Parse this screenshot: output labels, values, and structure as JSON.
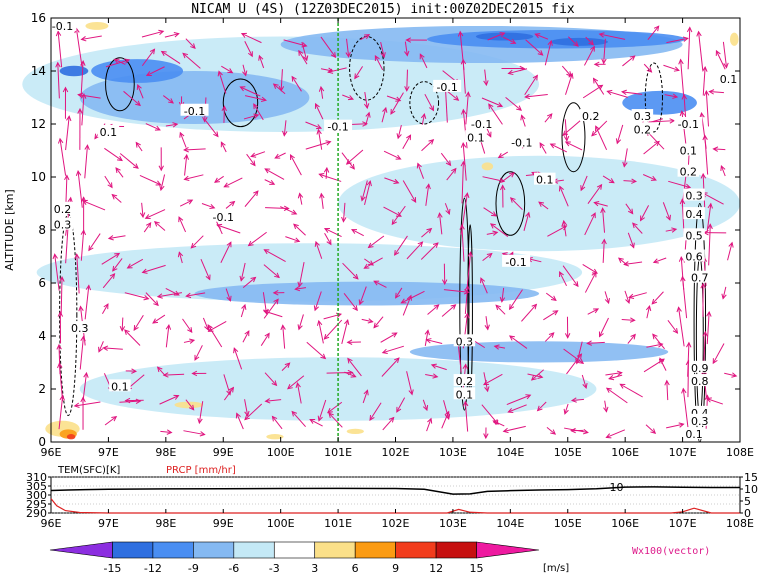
{
  "title": "NICAM U (4S) (12Z03DEC2015) init:00Z02DEC2015 fix",
  "chart_data": [
    {
      "type": "heatmap",
      "panel": "main",
      "title": "NICAM U (4S) (12Z03DEC2015) init:00Z02DEC2015 fix",
      "ylabel": "ALTITUDE [km]",
      "xlim": [
        96,
        108
      ],
      "ylim": [
        0,
        16
      ],
      "x_ticks": [
        "96E",
        "97E",
        "98E",
        "99E",
        "100E",
        "101E",
        "102E",
        "103E",
        "104E",
        "105E",
        "106E",
        "107E",
        "108E"
      ],
      "y_ticks": [
        "0",
        "2",
        "4",
        "6",
        "8",
        "10",
        "12",
        "14",
        "16"
      ],
      "reference_line_x": 101,
      "contour_labels": [
        {
          "text": "0.1",
          "x": 97.0,
          "y": 11.7
        },
        {
          "text": "-0.1",
          "x": 98.5,
          "y": 12.5
        },
        {
          "text": "-0.1",
          "x": 101.0,
          "y": 11.9
        },
        {
          "text": "-0.1",
          "x": 102.9,
          "y": 13.4
        },
        {
          "text": "-0.1",
          "x": 103.5,
          "y": 12.0
        },
        {
          "text": "-0.1",
          "x": 104.2,
          "y": 11.3
        },
        {
          "text": "0.1",
          "x": 103.4,
          "y": 11.5
        },
        {
          "text": "0.1",
          "x": 104.6,
          "y": 9.9
        },
        {
          "text": "0.2",
          "x": 105.4,
          "y": 12.3
        },
        {
          "text": "0.3",
          "x": 106.3,
          "y": 12.3
        },
        {
          "text": "0.2",
          "x": 106.3,
          "y": 11.8
        },
        {
          "text": "-0.1",
          "x": 107.1,
          "y": 12.0
        },
        {
          "text": "0.1",
          "x": 107.8,
          "y": 13.7
        },
        {
          "text": "-0.1",
          "x": 104.1,
          "y": 6.8
        },
        {
          "text": "-0.1",
          "x": 99.0,
          "y": 8.5
        },
        {
          "text": "0.2",
          "x": 96.2,
          "y": 8.8
        },
        {
          "text": "0.3",
          "x": 96.2,
          "y": 8.2
        },
        {
          "text": "-0.1",
          "x": 96.2,
          "y": 15.7
        },
        {
          "text": "0.3",
          "x": 103.2,
          "y": 3.8
        },
        {
          "text": "0.2",
          "x": 103.2,
          "y": 2.3
        },
        {
          "text": "0.1",
          "x": 103.2,
          "y": 1.8
        },
        {
          "text": "0.3",
          "x": 96.5,
          "y": 4.3
        },
        {
          "text": "0.1",
          "x": 97.2,
          "y": 2.1
        },
        {
          "text": "0.1",
          "x": 107.1,
          "y": 11.0
        },
        {
          "text": "0.2",
          "x": 107.1,
          "y": 10.2
        },
        {
          "text": "0.3",
          "x": 107.2,
          "y": 9.3
        },
        {
          "text": "0.4",
          "x": 107.2,
          "y": 8.6
        },
        {
          "text": "0.5",
          "x": 107.2,
          "y": 7.8
        },
        {
          "text": "0.6",
          "x": 107.2,
          "y": 7.0
        },
        {
          "text": "0.7",
          "x": 107.3,
          "y": 6.2
        },
        {
          "text": "0.9",
          "x": 107.3,
          "y": 2.8
        },
        {
          "text": "0.8",
          "x": 107.3,
          "y": 2.3
        },
        {
          "text": "0.4",
          "x": 107.3,
          "y": 1.1
        },
        {
          "text": "0.3",
          "x": 107.3,
          "y": 0.8
        },
        {
          "text": "0.1",
          "x": 107.2,
          "y": 0.3
        }
      ]
    },
    {
      "type": "line",
      "panel": "surface",
      "xlim": [
        96,
        108
      ],
      "x_ticks": [
        "96E",
        "97E",
        "98E",
        "99E",
        "100E",
        "101E",
        "102E",
        "103E",
        "104E",
        "105E",
        "106E",
        "107E",
        "108E"
      ],
      "left_axis": {
        "label": "TEM(SFC)[K]",
        "ticks": [
          "290",
          "295",
          "300",
          "305",
          "310"
        ],
        "ylim": [
          290,
          310
        ]
      },
      "right_axis": {
        "label": "PRCP [mm/hr]",
        "ticks": [
          "0",
          "5",
          "10",
          "15"
        ],
        "ylim": [
          0,
          15
        ]
      },
      "series": [
        {
          "name": "TEM(SFC)[K]",
          "color": "#000000",
          "x": [
            96,
            96.3,
            96.6,
            97,
            98,
            99,
            100,
            101,
            102,
            102.5,
            103,
            103.3,
            103.6,
            104,
            104.5,
            105,
            105.5,
            106,
            106.5,
            107,
            107.5,
            108
          ],
          "y": [
            302.5,
            302.8,
            303,
            303.2,
            303.4,
            303.5,
            303.6,
            303.7,
            303.6,
            303.2,
            300.5,
            300.6,
            302,
            302.4,
            302.8,
            303,
            303.5,
            304.4,
            304.5,
            304.3,
            304.2,
            304.2
          ]
        },
        {
          "name": "PRCP [mm/hr]",
          "color": "#dd2222",
          "x": [
            96,
            96.1,
            96.25,
            96.5,
            97,
            98,
            102.9,
            103.1,
            103.3,
            103.6,
            104,
            106.8,
            107,
            107.2,
            107.5,
            108
          ],
          "y": [
            6,
            3,
            1,
            0.2,
            0,
            0,
            0,
            1.5,
            0.3,
            0,
            0,
            0,
            0.5,
            2,
            0,
            0
          ]
        }
      ],
      "annotation": "10"
    },
    {
      "type": "legend",
      "panel": "colorbar",
      "levels": [
        "-15",
        "-12",
        "-9",
        "-6",
        "-3",
        "3",
        "6",
        "9",
        "12",
        "15"
      ],
      "colors": [
        "#8c2ee0",
        "#2f6fe0",
        "#4a8ef2",
        "#85b9f2",
        "#c4e9f6",
        "#ffffff",
        "#fbe089",
        "#fb9b13",
        "#f23c1c",
        "#c61010",
        "#ee1aa0"
      ],
      "unit": "[m/s]",
      "vector_label": "Wx100(vector)"
    }
  ],
  "palette": {
    "u_neg15": "#8c2ee0",
    "u_neg12": "#2f6fe0",
    "u_neg9": "#4a8ef2",
    "u_neg6": "#85b9f2",
    "u_neg3": "#c4e9f6",
    "u_pos3": "#fbe089",
    "u_pos6": "#fb9b13",
    "u_pos9": "#f23c1c",
    "u_pos12": "#c61010",
    "vector": "#e0157f",
    "ref_line": "#22aa22"
  }
}
